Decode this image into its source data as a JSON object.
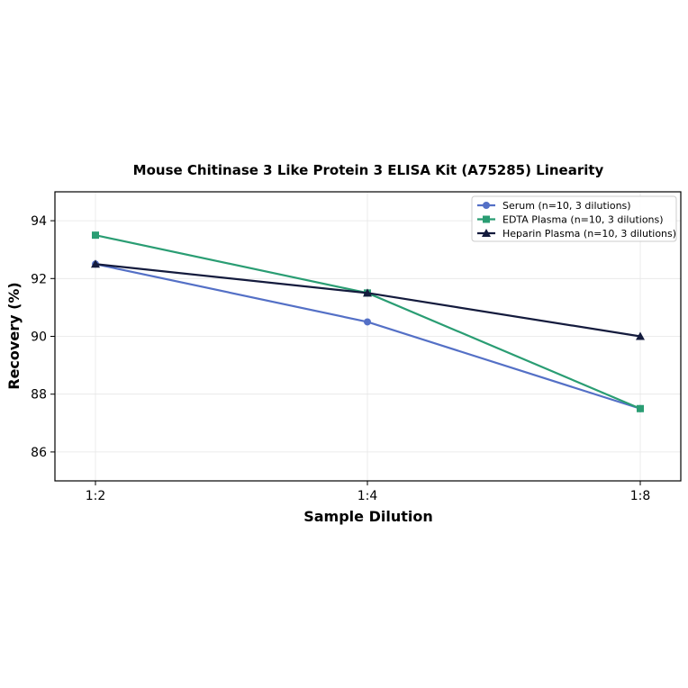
{
  "chart_data": {
    "type": "line",
    "title": "Mouse Chitinase 3 Like Protein 3 ELISA Kit (A75285) Linearity",
    "xlabel": "Sample Dilution",
    "ylabel": "Recovery (%)",
    "categories": [
      "1:2",
      "1:4",
      "1:8"
    ],
    "ylim": [
      85,
      95
    ],
    "yticks": [
      86,
      88,
      90,
      92,
      94
    ],
    "grid": true,
    "legend_position": "top-right",
    "series": [
      {
        "name": "Serum (n=10, 3 dilutions)",
        "values": [
          92.5,
          90.5,
          87.5
        ],
        "color": "#5470c6",
        "marker": "circle"
      },
      {
        "name": "EDTA Plasma (n=10, 3 dilutions)",
        "values": [
          93.5,
          91.5,
          87.5
        ],
        "color": "#2a9d73",
        "marker": "square"
      },
      {
        "name": "Heparin Plasma (n=10, 3 dilutions)",
        "values": [
          92.5,
          91.5,
          90.0
        ],
        "color": "#141b3d",
        "marker": "triangle"
      }
    ]
  }
}
